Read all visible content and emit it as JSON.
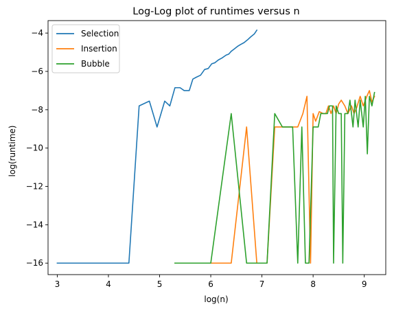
{
  "chart_data": {
    "type": "line",
    "title": "Log-Log plot of runtimes versus n",
    "xlabel": "log(n)",
    "ylabel": "log(runtime)",
    "xlim": [
      2.82,
      9.42
    ],
    "ylim": [
      -16.6,
      -3.35
    ],
    "xticks": [
      3,
      4,
      5,
      6,
      7,
      8,
      9
    ],
    "yticks": [
      -16,
      -14,
      -12,
      -10,
      -8,
      -6,
      -4
    ],
    "grid": false,
    "legend_position": "top-left",
    "series": [
      {
        "name": "Selection",
        "color": "#1f77b4",
        "points": [
          [
            3.0,
            -16.0
          ],
          [
            4.4,
            -16.0
          ],
          [
            4.6,
            -7.8
          ],
          [
            4.8,
            -7.55
          ],
          [
            4.95,
            -8.9
          ],
          [
            5.1,
            -7.55
          ],
          [
            5.2,
            -7.8
          ],
          [
            5.3,
            -6.85
          ],
          [
            5.4,
            -6.85
          ],
          [
            5.48,
            -7.0
          ],
          [
            5.58,
            -7.0
          ],
          [
            5.65,
            -6.4
          ],
          [
            5.72,
            -6.3
          ],
          [
            5.8,
            -6.2
          ],
          [
            5.88,
            -5.9
          ],
          [
            5.95,
            -5.85
          ],
          [
            6.02,
            -5.6
          ],
          [
            6.08,
            -5.55
          ],
          [
            6.15,
            -5.4
          ],
          [
            6.22,
            -5.3
          ],
          [
            6.3,
            -5.15
          ],
          [
            6.35,
            -5.1
          ],
          [
            6.4,
            -4.95
          ],
          [
            6.45,
            -4.85
          ],
          [
            6.52,
            -4.7
          ],
          [
            6.58,
            -4.6
          ],
          [
            6.65,
            -4.5
          ],
          [
            6.72,
            -4.35
          ],
          [
            6.78,
            -4.2
          ],
          [
            6.85,
            -4.05
          ],
          [
            6.9,
            -3.85
          ]
        ]
      },
      {
        "name": "Insertion",
        "color": "#ff7f0e",
        "points": [
          [
            5.3,
            -16.0
          ],
          [
            6.4,
            -16.0
          ],
          [
            6.7,
            -8.9
          ],
          [
            6.9,
            -16.0
          ],
          [
            7.1,
            -16.0
          ],
          [
            7.25,
            -8.9
          ],
          [
            7.5,
            -8.9
          ],
          [
            7.7,
            -8.9
          ],
          [
            7.8,
            -8.2
          ],
          [
            7.88,
            -7.3
          ],
          [
            7.95,
            -16.0
          ],
          [
            8.0,
            -8.2
          ],
          [
            8.05,
            -8.6
          ],
          [
            8.12,
            -8.1
          ],
          [
            8.2,
            -8.2
          ],
          [
            8.25,
            -8.2
          ],
          [
            8.3,
            -7.8
          ],
          [
            8.35,
            -8.2
          ],
          [
            8.4,
            -7.8
          ],
          [
            8.45,
            -8.2
          ],
          [
            8.5,
            -7.7
          ],
          [
            8.55,
            -7.5
          ],
          [
            8.62,
            -7.8
          ],
          [
            8.68,
            -8.2
          ],
          [
            8.75,
            -7.8
          ],
          [
            8.8,
            -8.2
          ],
          [
            8.85,
            -7.9
          ],
          [
            8.92,
            -7.3
          ],
          [
            8.98,
            -7.8
          ],
          [
            9.05,
            -7.3
          ],
          [
            9.1,
            -7.0
          ],
          [
            9.15,
            -7.6
          ],
          [
            9.2,
            -7.3
          ]
        ]
      },
      {
        "name": "Bubble",
        "color": "#2ca02c",
        "points": [
          [
            5.3,
            -16.0
          ],
          [
            6.0,
            -16.0
          ],
          [
            6.4,
            -8.2
          ],
          [
            6.7,
            -16.0
          ],
          [
            7.1,
            -16.0
          ],
          [
            7.25,
            -8.2
          ],
          [
            7.4,
            -8.9
          ],
          [
            7.6,
            -8.9
          ],
          [
            7.7,
            -16.0
          ],
          [
            7.78,
            -8.9
          ],
          [
            7.85,
            -16.0
          ],
          [
            7.92,
            -16.0
          ],
          [
            8.0,
            -8.9
          ],
          [
            8.1,
            -8.9
          ],
          [
            8.15,
            -8.2
          ],
          [
            8.2,
            -8.2
          ],
          [
            8.28,
            -8.2
          ],
          [
            8.32,
            -7.8
          ],
          [
            8.38,
            -7.8
          ],
          [
            8.4,
            -16.0
          ],
          [
            8.45,
            -7.8
          ],
          [
            8.5,
            -8.2
          ],
          [
            8.55,
            -8.2
          ],
          [
            8.58,
            -16.0
          ],
          [
            8.62,
            -8.2
          ],
          [
            8.68,
            -8.2
          ],
          [
            8.72,
            -7.5
          ],
          [
            8.78,
            -8.9
          ],
          [
            8.82,
            -7.5
          ],
          [
            8.88,
            -8.9
          ],
          [
            8.92,
            -7.5
          ],
          [
            8.98,
            -8.9
          ],
          [
            9.02,
            -7.3
          ],
          [
            9.06,
            -10.3
          ],
          [
            9.1,
            -7.3
          ],
          [
            9.15,
            -7.8
          ],
          [
            9.2,
            -7.1
          ]
        ]
      }
    ]
  }
}
